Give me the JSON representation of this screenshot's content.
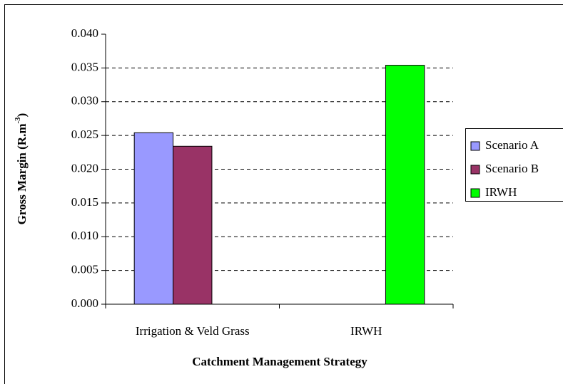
{
  "chart_data": {
    "type": "bar",
    "x_label": "Catchment Management Strategy",
    "y_label": [
      "Gross Margin (R.m",
      "-3",
      ")"
    ],
    "categories": [
      "Irrigation & Veld Grass",
      "IRWH"
    ],
    "series": [
      {
        "name": "Scenario A",
        "color": "#9999ff",
        "values": [
          0.0254,
          null
        ]
      },
      {
        "name": "Scenario B",
        "color": "#993366",
        "values": [
          0.0234,
          null
        ]
      },
      {
        "name": "IRWH",
        "color": "#00ff00",
        "values": [
          null,
          0.0354
        ]
      }
    ],
    "ylim": [
      0,
      0.04
    ],
    "yticks": [
      {
        "value": 0,
        "label": "0.000"
      },
      {
        "value": 0.005,
        "label": "0.005"
      },
      {
        "value": 0.01,
        "label": "0.010"
      },
      {
        "value": 0.015,
        "label": "0.015"
      },
      {
        "value": 0.02,
        "label": "0.020"
      },
      {
        "value": 0.025,
        "label": "0.025"
      },
      {
        "value": 0.03,
        "label": "0.030"
      },
      {
        "value": 0.035,
        "label": "0.035"
      },
      {
        "value": 0.04,
        "label": "0.040"
      }
    ],
    "grid": true,
    "legend": "right"
  }
}
